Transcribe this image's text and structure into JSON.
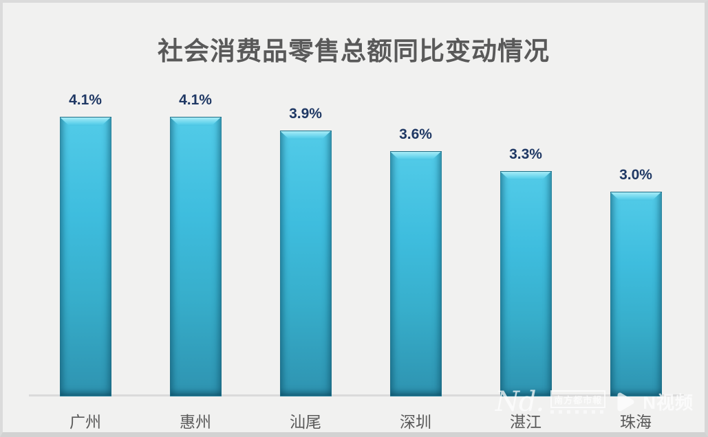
{
  "title": "社会消费品零售总额同比变动情况",
  "chart_data": {
    "type": "bar",
    "title": "社会消费品零售总额同比变动情况",
    "categories": [
      "广州",
      "惠州",
      "汕尾",
      "深圳",
      "湛江",
      "珠海"
    ],
    "values": [
      4.1,
      4.1,
      3.9,
      3.6,
      3.3,
      3.0
    ],
    "value_labels": [
      "4.1%",
      "4.1%",
      "3.9%",
      "3.6%",
      "3.3%",
      "3.0%"
    ],
    "xlabel": "",
    "ylabel": "",
    "ylim": [
      0,
      4.7
    ],
    "grid": false,
    "legend": null,
    "colors": {
      "bar_top": "#52cbe8",
      "bar_bottom": "#2e93b0",
      "value_label": "#1f3864",
      "category_label": "#595959",
      "title": "#595959",
      "axis_line": "#dadada",
      "background": "#f1f1f0"
    }
  },
  "watermark": {
    "nd_script": "Nd.",
    "paper_name": "南方都市報",
    "video_brand": "N视频"
  }
}
